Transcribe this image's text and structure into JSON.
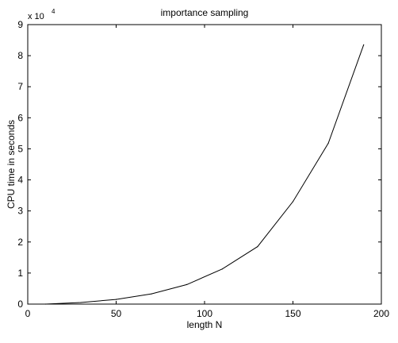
{
  "chart_data": {
    "type": "line",
    "title": "importance sampling",
    "xlabel": "length N",
    "ylabel": "CPU time in seconds",
    "y_exponent_label": {
      "base": "x 10",
      "power": "4"
    },
    "xlim": [
      0,
      200
    ],
    "ylim": [
      0,
      90000
    ],
    "xticks": [
      0,
      50,
      100,
      150,
      200
    ],
    "xtick_labels": [
      "0",
      "50",
      "100",
      "150",
      "200"
    ],
    "yticks": [
      0,
      10000,
      20000,
      30000,
      40000,
      50000,
      60000,
      70000,
      80000,
      90000
    ],
    "ytick_labels": [
      "0",
      "1",
      "2",
      "3",
      "4",
      "5",
      "6",
      "7",
      "8",
      "9"
    ],
    "grid": false,
    "legend": "none",
    "line_color": "#000000",
    "series": [
      {
        "x": [
          10,
          30,
          50,
          70,
          90,
          110,
          130,
          150,
          170,
          190
        ],
        "y": [
          0,
          500,
          1500,
          3300,
          6300,
          11300,
          18500,
          33000,
          51800,
          83500
        ]
      }
    ]
  }
}
